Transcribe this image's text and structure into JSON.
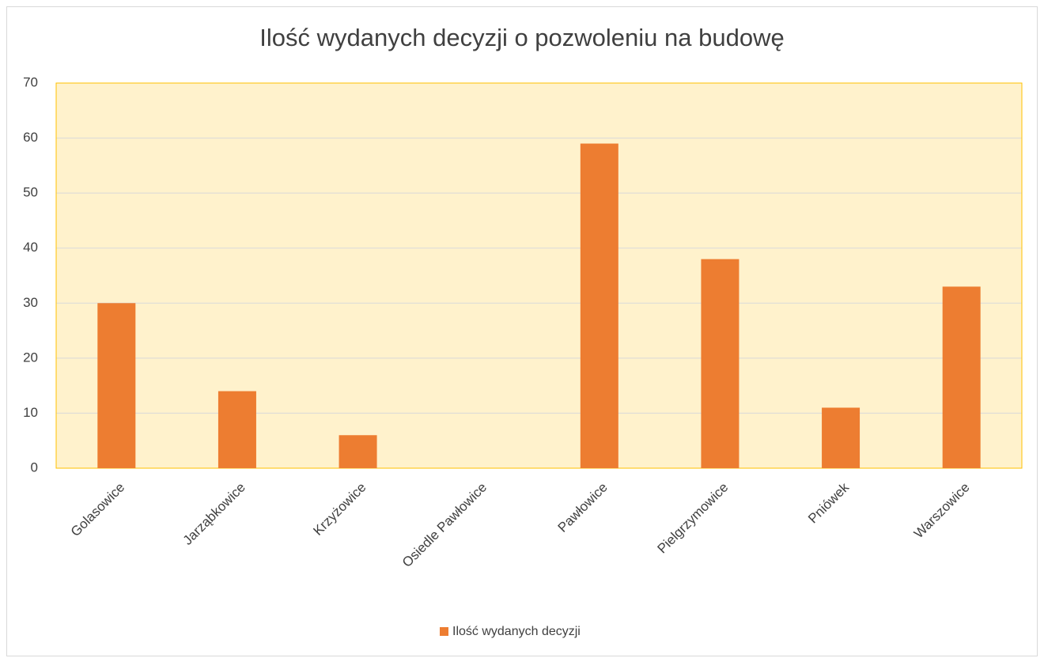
{
  "chart_data": {
    "type": "bar",
    "title": "Ilość wydanych decyzji o pozwoleniu na budowę",
    "categories": [
      "Golasowice",
      "Jarząbkowice",
      "Krzyżowice",
      "Osiedle Pawłowice",
      "Pawłowice",
      "Pielgrzymowice",
      "Pniówek",
      "Warszowice"
    ],
    "series": [
      {
        "name": "Ilość wydanych decyzji",
        "color": "#ed7d31",
        "values": [
          30,
          14,
          6,
          0,
          59,
          38,
          11,
          33
        ]
      }
    ],
    "ylim": [
      0,
      70
    ],
    "yticks": [
      0,
      10,
      20,
      30,
      40,
      50,
      60,
      70
    ],
    "grid": true,
    "plot_background": "#fff2cc",
    "plot_border": "#ffc000",
    "legend": "bottom"
  }
}
